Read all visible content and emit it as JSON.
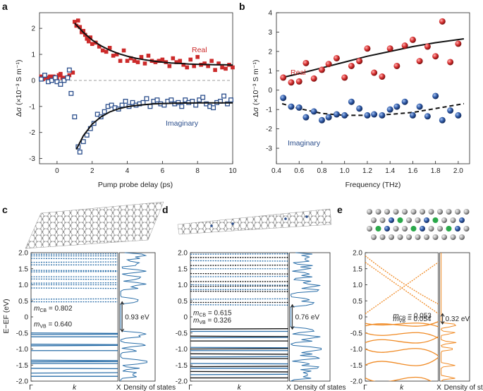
{
  "figure": {
    "panel_labels": [
      "a",
      "b",
      "c",
      "d",
      "e"
    ],
    "colors": {
      "real": "#cc2a2a",
      "imaginary": "#2b4e8c",
      "blue_band": "#2a6ea8",
      "orange_band": "#f08a24",
      "black": "#111111"
    }
  },
  "chart_data": [
    {
      "panel": "a",
      "type": "scatter",
      "xlabel": "Pump probe delay (ps)",
      "ylabel": "Δσ (×10⁻³ S m⁻¹)",
      "xlim": [
        -1,
        10
      ],
      "ylim": [
        -3.2,
        2.6
      ],
      "xticks": [
        "0",
        "2",
        "4",
        "6",
        "8",
        "10"
      ],
      "yticks": [
        "2",
        "1",
        "0",
        "-1",
        "-2",
        "-3"
      ],
      "series": [
        {
          "name": "Real",
          "marker": "filled-square",
          "x": [
            -0.9,
            -0.8,
            -0.7,
            -0.6,
            -0.5,
            -0.4,
            -0.3,
            -0.2,
            -0.1,
            0,
            0.1,
            0.2,
            0.3,
            0.5,
            0.7,
            0.9,
            1.0,
            1.1,
            1.2,
            1.3,
            1.4,
            1.5,
            1.6,
            1.7,
            1.8,
            1.9,
            2.0,
            2.2,
            2.4,
            2.6,
            2.8,
            3.0,
            3.2,
            3.4,
            3.6,
            3.8,
            4.0,
            4.2,
            4.4,
            4.6,
            4.8,
            5.0,
            5.2,
            5.4,
            5.6,
            5.8,
            6.0,
            6.2,
            6.4,
            6.6,
            6.8,
            7.0,
            7.2,
            7.4,
            7.6,
            7.8,
            8.0,
            8.2,
            8.4,
            8.6,
            8.8,
            9.0,
            9.2,
            9.4,
            9.6,
            9.8,
            10.0
          ],
          "y": [
            0.15,
            0.05,
            0.2,
            0.1,
            0.1,
            0.15,
            0.0,
            0.15,
            0.1,
            0.05,
            0.2,
            0.25,
            0.1,
            0.1,
            0.2,
            0.3,
            2.25,
            2.1,
            2.3,
            2.05,
            1.85,
            1.9,
            1.75,
            1.6,
            1.5,
            1.65,
            1.4,
            1.45,
            1.3,
            1.15,
            1.1,
            1.25,
            0.95,
            1.0,
            0.75,
            1.15,
            0.75,
            0.85,
            0.75,
            0.7,
            0.9,
            0.65,
            0.95,
            0.75,
            0.7,
            0.75,
            0.8,
            0.7,
            0.55,
            0.85,
            0.7,
            0.75,
            0.6,
            0.5,
            0.8,
            0.55,
            0.9,
            0.6,
            0.65,
            0.55,
            0.75,
            0.4,
            0.65,
            0.5,
            0.45,
            0.6,
            0.5
          ]
        },
        {
          "name": "Imaginary",
          "marker": "open-square",
          "x": [
            -0.9,
            -0.7,
            -0.5,
            -0.3,
            -0.1,
            0,
            0.2,
            0.4,
            0.6,
            0.7,
            0.8,
            1.0,
            1.2,
            1.3,
            1.5,
            1.7,
            1.9,
            2.1,
            2.3,
            2.5,
            2.7,
            2.9,
            3.1,
            3.3,
            3.5,
            3.7,
            3.9,
            4.1,
            4.3,
            4.5,
            4.7,
            4.9,
            5.1,
            5.3,
            5.5,
            5.7,
            5.9,
            6.1,
            6.3,
            6.5,
            6.7,
            6.9,
            7.1,
            7.3,
            7.5,
            7.7,
            7.9,
            8.1,
            8.3,
            8.5,
            8.7,
            8.9,
            9.1,
            9.3,
            9.5,
            9.7,
            9.9
          ],
          "y": [
            0.05,
            0.2,
            -0.05,
            0.0,
            0.1,
            -0.05,
            -0.15,
            0.0,
            0.1,
            0.4,
            -0.5,
            -1.4,
            -2.55,
            -2.75,
            -2.35,
            -2.1,
            -1.85,
            -1.65,
            -1.3,
            -1.4,
            -1.2,
            -1.0,
            -0.95,
            -1.05,
            -1.1,
            -0.95,
            -0.8,
            -1.0,
            -0.85,
            -0.95,
            -0.9,
            -0.85,
            -0.7,
            -1.0,
            -0.8,
            -0.75,
            -0.9,
            -0.95,
            -0.8,
            -0.75,
            -0.9,
            -0.85,
            -1.0,
            -0.75,
            -0.85,
            -0.8,
            -0.95,
            -0.75,
            -0.65,
            -0.9,
            -1.0,
            -1.05,
            -0.85,
            -0.8,
            -0.6,
            -0.9,
            -0.75
          ]
        },
        {
          "name": "Real fit",
          "line": "solid",
          "x": [
            1.0,
            1.5,
            2.0,
            2.5,
            3.0,
            3.5,
            4.0,
            4.5,
            5.0,
            5.5,
            6.0,
            6.5,
            7.0,
            7.5,
            8.0,
            8.5,
            9.0,
            9.5,
            10.0
          ],
          "y": [
            2.2,
            1.84,
            1.55,
            1.33,
            1.16,
            1.03,
            0.93,
            0.85,
            0.79,
            0.74,
            0.7,
            0.67,
            0.65,
            0.63,
            0.62,
            0.61,
            0.6,
            0.6,
            0.59
          ]
        },
        {
          "name": "Imaginary fit",
          "line": "solid",
          "x": [
            1.1,
            1.5,
            2.0,
            2.5,
            3.0,
            3.5,
            4.0,
            4.5,
            5.0,
            5.5,
            6.0,
            6.5,
            7.0,
            7.5,
            8.0,
            8.5,
            9.0,
            9.5,
            10.0
          ],
          "y": [
            -2.65,
            -2.12,
            -1.68,
            -1.4,
            -1.21,
            -1.09,
            -1.01,
            -0.96,
            -0.93,
            -0.9,
            -0.89,
            -0.88,
            -0.87,
            -0.87,
            -0.86,
            -0.86,
            -0.86,
            -0.86,
            -0.86
          ]
        },
        {
          "name": "Zero",
          "line": "dashed",
          "x": [
            -1,
            10
          ],
          "y": [
            0,
            0
          ]
        }
      ],
      "annotations": [
        "Real",
        "Imaginary"
      ]
    },
    {
      "panel": "b",
      "type": "scatter",
      "xlabel": "Frequency (THz)",
      "ylabel": "Δσ (×10⁻³ S m⁻¹)",
      "xlim": [
        0.4,
        2.1
      ],
      "ylim": [
        -3.8,
        4.0
      ],
      "xticks": [
        "0.4",
        "0.6",
        "0.8",
        "1.0",
        "1.2",
        "1.4",
        "1.6",
        "1.8",
        "2.0"
      ],
      "yticks": [
        "4",
        "3",
        "2",
        "1",
        "0",
        "-1",
        "-2",
        "-3"
      ],
      "series": [
        {
          "name": "Real",
          "marker": "sphere",
          "x": [
            0.46,
            0.53,
            0.6,
            0.66,
            0.73,
            0.8,
            0.86,
            0.93,
            1.0,
            1.06,
            1.13,
            1.2,
            1.26,
            1.33,
            1.4,
            1.46,
            1.53,
            1.6,
            1.66,
            1.73,
            1.8,
            1.86,
            1.93,
            2.0
          ],
          "y": [
            0.65,
            0.4,
            0.45,
            1.4,
            0.6,
            1.05,
            1.35,
            1.65,
            0.65,
            1.25,
            1.5,
            2.15,
            0.9,
            0.7,
            2.15,
            1.25,
            2.3,
            2.6,
            1.5,
            2.25,
            1.75,
            3.55,
            1.45,
            2.4
          ]
        },
        {
          "name": "Imaginary",
          "marker": "sphere",
          "x": [
            0.46,
            0.53,
            0.6,
            0.66,
            0.73,
            0.8,
            0.86,
            0.93,
            1.0,
            1.06,
            1.13,
            1.2,
            1.26,
            1.33,
            1.4,
            1.46,
            1.53,
            1.6,
            1.66,
            1.73,
            1.8,
            1.86,
            1.93,
            2.0
          ],
          "y": [
            -0.4,
            -0.85,
            -0.9,
            -1.4,
            -1.1,
            -1.55,
            -1.4,
            -1.25,
            -1.3,
            -0.6,
            -0.95,
            -1.3,
            -1.25,
            -1.3,
            -1.0,
            -0.85,
            -0.6,
            -1.3,
            -0.85,
            -1.35,
            -0.3,
            -1.55,
            -1.05,
            -1.3
          ]
        },
        {
          "name": "Real fit",
          "line": "solid",
          "x": [
            0.45,
            0.6,
            0.8,
            1.0,
            1.2,
            1.4,
            1.6,
            1.8,
            2.05
          ],
          "y": [
            0.65,
            0.85,
            1.15,
            1.45,
            1.75,
            2.0,
            2.25,
            2.45,
            2.65
          ]
        },
        {
          "name": "Imaginary fit",
          "line": "dashed",
          "x": [
            0.45,
            0.6,
            0.8,
            1.0,
            1.2,
            1.4,
            1.6,
            1.8,
            2.05
          ],
          "y": [
            -0.7,
            -0.95,
            -1.2,
            -1.3,
            -1.3,
            -1.25,
            -1.15,
            -0.95,
            -0.7
          ]
        }
      ],
      "annotations": [
        "Real",
        "Imaginary"
      ]
    },
    {
      "panel": "c",
      "type": "line",
      "ylabel": "E−EF (eV)",
      "ylim": [
        -2.0,
        2.0
      ],
      "yticks": [
        "2.0",
        "1.5",
        "1.0",
        "0.5",
        "0",
        "-0.5",
        "-1.0",
        "-1.5",
        "-2.0"
      ],
      "xticks": [
        "Γ",
        "k",
        "X"
      ],
      "dos_label": "Density of states",
      "bands_eV": [
        1.95,
        1.9,
        1.82,
        1.7,
        1.62,
        1.45,
        1.4,
        1.25,
        1.18,
        1.05,
        1.0,
        0.9,
        0.55,
        0.47,
        -0.5,
        -0.55,
        -0.62,
        -0.85,
        -0.9,
        -1.05,
        -1.35,
        -1.4,
        -1.45,
        -1.6,
        -1.75,
        -1.85
      ],
      "gap": {
        "value": "0.93 eV",
        "from_eV": 0.47,
        "to_eV": -0.46
      },
      "masses": {
        "cb_label": "CB",
        "cb_value": "0.802",
        "vb_label": "VB",
        "vb_value": "0.640"
      }
    },
    {
      "panel": "d",
      "type": "line",
      "ylim": [
        -2.0,
        2.0
      ],
      "yticks": [
        "2.0",
        "1.5",
        "1.0",
        "0.5",
        "0",
        "-0.5",
        "-1.0",
        "-1.5",
        "-2.0"
      ],
      "xticks": [
        "Γ",
        "k",
        "X"
      ],
      "dos_label": "Density of states",
      "bands_eV": [
        1.95,
        1.85,
        1.75,
        1.6,
        1.5,
        1.35,
        1.25,
        1.1,
        1.0,
        0.95,
        0.85,
        0.8,
        0.55,
        0.45,
        0.38,
        -0.38,
        -0.45,
        -0.6,
        -0.65,
        -0.75,
        -0.95,
        -1.0,
        -1.05,
        -1.15,
        -1.25,
        -1.3,
        -1.45,
        -1.55,
        -1.6,
        -1.7,
        -1.8,
        -1.9
      ],
      "gap": {
        "value": "0.76 eV",
        "from_eV": 0.38,
        "to_eV": -0.38
      },
      "masses": {
        "cb_label": "CB",
        "cb_value": "0.615",
        "vb_label": "VB",
        "vb_value": "0.326"
      }
    },
    {
      "panel": "e",
      "type": "line",
      "ylim": [
        -2.0,
        2.0
      ],
      "yticks": [
        "2.0",
        "1.5",
        "1.0",
        "0.5",
        "0",
        "-0.5",
        "-1.0",
        "-1.5",
        "-2.0"
      ],
      "xticks": [
        "Γ",
        "k",
        "X"
      ],
      "dos_label": "Density of states",
      "bands_eV": [
        -0.2,
        -0.28,
        -0.5,
        -0.8,
        -1.0,
        -1.5,
        -1.9
      ],
      "gap": {
        "value": "0.32 eV",
        "from_eV": 0.1,
        "to_eV": -0.22
      },
      "masses": {
        "cb_label": "CB",
        "cb_value": "0.053",
        "vb_label": "VB",
        "vb_value": "0.054"
      }
    }
  ]
}
